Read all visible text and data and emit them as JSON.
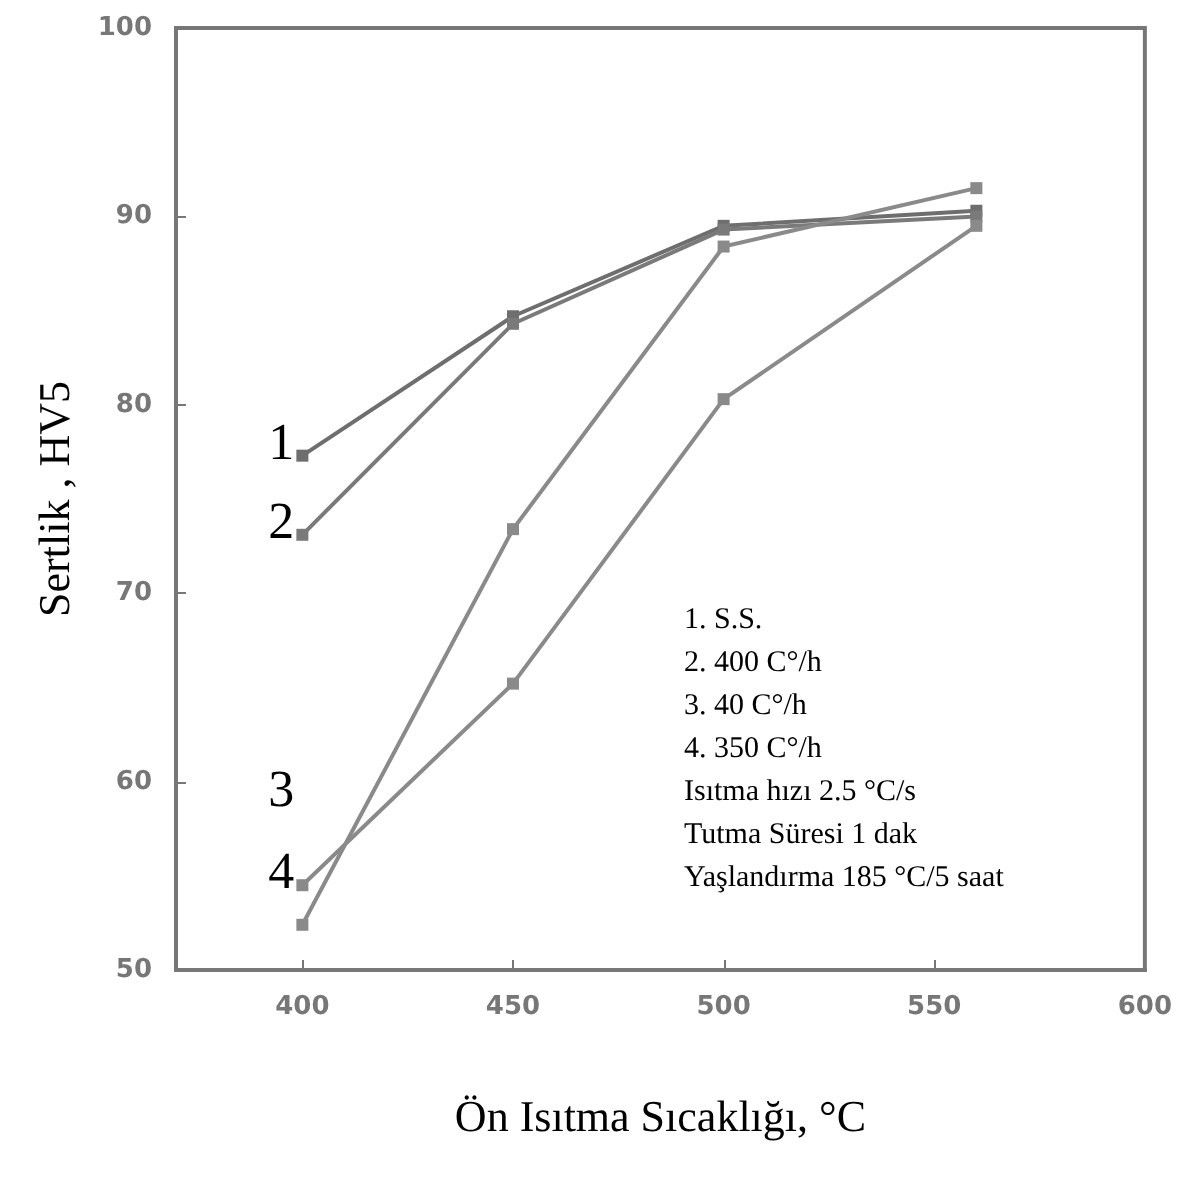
{
  "chart_data": {
    "type": "line",
    "xlabel": "Ön Isıtma Sıcaklığı, °C",
    "ylabel": "Sertlik , HV5",
    "x": [
      400,
      450,
      500,
      560
    ],
    "series": [
      {
        "color": "#6e6e6e",
        "values": [
          77.3,
          84.7,
          89.5,
          90.3
        ]
      },
      {
        "color": "#7a7a7a",
        "values": [
          73.1,
          84.3,
          89.3,
          90
        ]
      },
      {
        "color": "#8a8a8a",
        "values": [
          52.4,
          73.4,
          88.4,
          91.5
        ]
      },
      {
        "color": "#8a8a8a",
        "values": [
          54.5,
          65.2,
          80.3,
          89.5
        ]
      }
    ],
    "xlim": [
      370,
      600
    ],
    "xticks": [
      400,
      450,
      500,
      550,
      600
    ],
    "ylim": [
      50,
      100
    ],
    "yticks": [
      50,
      60,
      70,
      80,
      90,
      100
    ],
    "grid": false,
    "marker": "square",
    "line_style": "solid",
    "annotations": [
      "1",
      "2",
      "3",
      "4",
      "1. S.S.",
      "2. 400 C°/h",
      "3. 40 C°/h",
      "4. 350 C°/h",
      "Isıtma hızı 2.5 °C/s",
      "Tutma Süresi 1 dak",
      "Yaşlandırma 185 °C/5 saat"
    ]
  }
}
